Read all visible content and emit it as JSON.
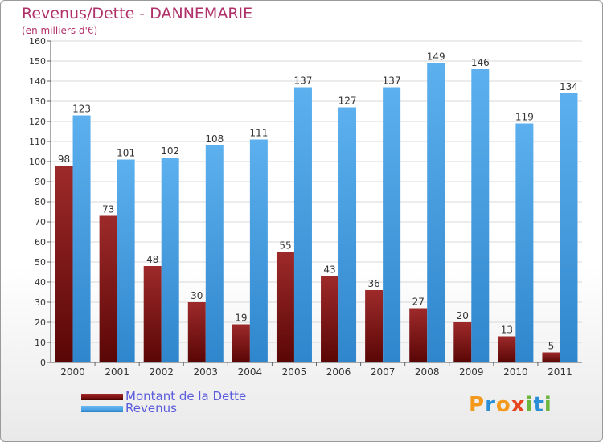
{
  "title": "Revenus/Dette - DANNEMARIE",
  "subtitle": "(en milliers d'€)",
  "logo": {
    "text": "Proxiti",
    "colors": [
      "#f39a1c",
      "#2a8fd6",
      "#f39a1c",
      "#e8431f",
      "#6db63e",
      "#2a8fd6",
      "#6db63e"
    ]
  },
  "colors": {
    "dette": "#7a1010",
    "revenus": "#4aa3e6",
    "axis_text": "#333333",
    "title": "#b0306a",
    "legend_text": "#5b5bdd"
  },
  "chart_data": {
    "type": "bar",
    "categories": [
      "2000",
      "2001",
      "2002",
      "2003",
      "2004",
      "2005",
      "2006",
      "2007",
      "2008",
      "2009",
      "2010",
      "2011"
    ],
    "series": [
      {
        "name": "Montant de la Dette",
        "values": [
          98,
          73,
          48,
          30,
          19,
          55,
          43,
          36,
          27,
          20,
          13,
          5
        ]
      },
      {
        "name": "Revenus",
        "values": [
          123,
          101,
          102,
          108,
          111,
          137,
          127,
          137,
          149,
          146,
          119,
          134
        ]
      }
    ],
    "ylim": [
      0,
      160
    ],
    "yticks": [
      0,
      10,
      20,
      30,
      40,
      50,
      60,
      70,
      80,
      90,
      100,
      110,
      120,
      130,
      140,
      150,
      160
    ],
    "grid": true,
    "legend_position": "bottom-left"
  }
}
